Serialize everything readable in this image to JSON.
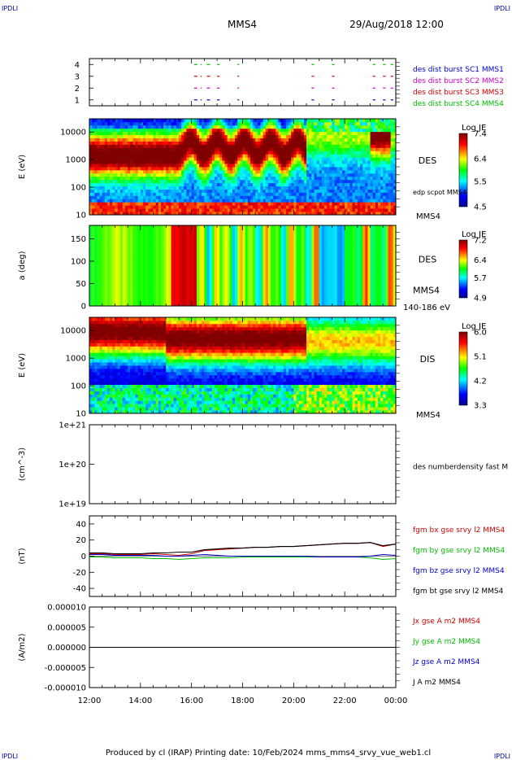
{
  "header": {
    "corner_left": "IPDLI",
    "corner_right": "IPDLI",
    "spacecraft": "MMS4",
    "datetime": "29/Aug/2018 12:00"
  },
  "footer": {
    "credit": "Produced by cl (IRAP)   Printing date: 10/Feb/2024   mms_mms4_srvy_vue_web1.cl",
    "corner_left": "IPDLI",
    "corner_right": "IPDLI"
  },
  "time_axis": {
    "ticks": [
      "12:00",
      "14:00",
      "16:00",
      "18:00",
      "20:00",
      "22:00",
      "00:00"
    ]
  },
  "colors": {
    "blue": "#0000cc",
    "magenta": "#cc00cc",
    "red": "#cc0000",
    "green": "#00bb00",
    "black": "#000000"
  },
  "chart_data": [
    {
      "type": "scatter",
      "name": "burst-availability",
      "ylabel": "",
      "ylim": [
        0.5,
        4.5
      ],
      "yticks": [
        "1",
        "2",
        "3",
        "4"
      ],
      "series": [
        {
          "name": "des dist burst SC1 MMS1",
          "level": 1,
          "color": "#0000cc",
          "segments": [
            [
              16.1,
              16.4
            ],
            [
              16.6,
              16.8
            ],
            [
              17.0,
              17.1
            ],
            [
              17.8,
              17.8
            ],
            [
              20.7,
              20.8
            ],
            [
              21.5,
              21.6
            ],
            [
              23.1,
              23.2
            ],
            [
              23.5,
              23.6
            ],
            [
              23.8,
              23.9
            ]
          ]
        },
        {
          "name": "des dist burst SC2 MMS2",
          "level": 2,
          "color": "#cc00cc",
          "segments": [
            [
              16.1,
              16.4
            ],
            [
              16.6,
              16.8
            ],
            [
              17.0,
              17.1
            ],
            [
              17.8,
              17.8
            ],
            [
              20.7,
              20.8
            ],
            [
              21.5,
              21.6
            ],
            [
              23.1,
              23.2
            ],
            [
              23.5,
              23.6
            ],
            [
              23.8,
              23.9
            ]
          ]
        },
        {
          "name": "des dist burst SC3 MMS3",
          "level": 3,
          "color": "#cc0000",
          "segments": [
            [
              16.1,
              16.4
            ],
            [
              16.6,
              16.8
            ],
            [
              17.0,
              17.1
            ],
            [
              17.8,
              17.8
            ],
            [
              20.7,
              20.8
            ],
            [
              21.5,
              21.6
            ],
            [
              23.1,
              23.2
            ],
            [
              23.5,
              23.6
            ],
            [
              23.8,
              23.9
            ]
          ]
        },
        {
          "name": "des dist burst SC4 MMS4",
          "level": 4,
          "color": "#00bb00",
          "segments": [
            [
              16.1,
              16.4
            ],
            [
              16.6,
              16.8
            ],
            [
              17.0,
              17.1
            ],
            [
              17.8,
              17.8
            ],
            [
              20.7,
              20.8
            ],
            [
              21.5,
              21.6
            ],
            [
              23.1,
              23.2
            ],
            [
              23.5,
              23.6
            ],
            [
              23.8,
              23.9
            ]
          ]
        }
      ]
    },
    {
      "type": "heatmap",
      "name": "des-energy",
      "ylabel": "E (eV)",
      "ylim": [
        10,
        30000
      ],
      "yscale": "log",
      "yticks": [
        "10",
        "100",
        "1000",
        "10000"
      ],
      "label": "DES",
      "sublabel": "edp scpot MMS4",
      "bottom_label": "MMS4",
      "colorbar": {
        "title": "Log JE",
        "min": 4.5,
        "max": 7.4,
        "ticks": [
          "7.4",
          "6.4",
          "5.5",
          "4.5"
        ]
      }
    },
    {
      "type": "heatmap",
      "name": "des-pitch-angle",
      "ylabel": "a (deg)",
      "ylim": [
        0,
        180
      ],
      "yticks": [
        "0",
        "50",
        "100",
        "150"
      ],
      "label": "DES",
      "sublabel": "MMS4",
      "bottom_label": "140-186 eV",
      "colorbar": {
        "title": "Log JE",
        "min": 4.9,
        "max": 7.2,
        "ticks": [
          "7.2",
          "6.4",
          "5.7",
          "4.9"
        ]
      }
    },
    {
      "type": "heatmap",
      "name": "dis-energy",
      "ylabel": "E (eV)",
      "ylim": [
        10,
        30000
      ],
      "yscale": "log",
      "yticks": [
        "10",
        "100",
        "1000",
        "10000"
      ],
      "label": "DIS",
      "bottom_label": "MMS4",
      "colorbar": {
        "title": "Log JE",
        "min": 3.3,
        "max": 6.0,
        "ticks": [
          "6.0",
          "5.1",
          "4.2",
          "3.3"
        ]
      }
    },
    {
      "type": "line",
      "name": "density",
      "ylabel": "(cm^-3)",
      "ylim": [
        1e+19,
        1e+21
      ],
      "yscale": "log",
      "yticks": [
        "1e+19",
        "1e+20",
        "1e+21"
      ],
      "series": [
        {
          "name": "des numberdensity fast M",
          "color": "#000000",
          "x": [],
          "y": []
        }
      ]
    },
    {
      "type": "line",
      "name": "magnetic-field",
      "ylabel": "(nT)",
      "ylim": [
        -50,
        50
      ],
      "yticks": [
        "-40",
        "-20",
        "0",
        "20",
        "40"
      ],
      "x": [
        12,
        12.5,
        13,
        13.5,
        14,
        14.5,
        15,
        15.5,
        16,
        16.5,
        17,
        17.5,
        18,
        18.5,
        19,
        19.5,
        20,
        20.5,
        21,
        21.5,
        22,
        22.5,
        23,
        23.5,
        24
      ],
      "series": [
        {
          "name": "fgm bx gse srvy l2 MMS4",
          "color": "#cc0000",
          "values": [
            3,
            3,
            2,
            2,
            2,
            3,
            2,
            1,
            3,
            7,
            8,
            9,
            10,
            11,
            11,
            12,
            12,
            13,
            14,
            15,
            16,
            16,
            17,
            12,
            15
          ]
        },
        {
          "name": "fgm by gse srvy l2 MMS4",
          "color": "#00bb00",
          "values": [
            -1,
            -1,
            -2,
            -2,
            -2,
            -3,
            -3,
            -4,
            -3,
            -2,
            -2,
            -2,
            -1,
            -1,
            -1,
            -1,
            -1,
            -1,
            -1,
            -1,
            -1,
            -1,
            -2,
            -4,
            -3
          ]
        },
        {
          "name": "fgm bz gse srvy l2 MMS4",
          "color": "#0000cc",
          "values": [
            2,
            2,
            1,
            1,
            1,
            1,
            0,
            0,
            1,
            2,
            1,
            0,
            0,
            0,
            0,
            0,
            0,
            0,
            -1,
            -1,
            -1,
            -1,
            0,
            2,
            1
          ]
        },
        {
          "name": "fgm bt gse srvy l2 MMS4",
          "color": "#000000",
          "values": [
            4,
            4,
            3,
            3,
            3,
            4,
            4,
            5,
            5,
            8,
            9,
            10,
            10,
            11,
            11,
            12,
            12,
            13,
            14,
            15,
            16,
            16,
            17,
            13,
            15
          ]
        }
      ]
    },
    {
      "type": "line",
      "name": "current-density",
      "ylabel": "(A/m2)",
      "ylim": [
        -0.0001,
        0.0001
      ],
      "yticks": [
        "-0.000010",
        "-0.000005",
        "0.000000",
        "0.000005",
        "0.000010"
      ],
      "x": [
        12,
        14,
        16,
        18,
        20,
        22,
        24
      ],
      "series": [
        {
          "name": "Jx gse A m2 MMS4",
          "color": "#cc0000",
          "values": [
            0,
            0,
            0,
            0,
            0,
            0,
            0
          ]
        },
        {
          "name": "Jy gse A m2 MMS4",
          "color": "#00bb00",
          "values": [
            0,
            0,
            0,
            0,
            0,
            0,
            0
          ]
        },
        {
          "name": "Jz gse A m2 MMS4",
          "color": "#0000cc",
          "values": [
            0,
            0,
            0,
            0,
            0,
            0,
            0
          ]
        },
        {
          "name": "J A m2 MMS4",
          "color": "#000000",
          "values": [
            0,
            0,
            0,
            0,
            0,
            0,
            0
          ]
        }
      ]
    }
  ]
}
